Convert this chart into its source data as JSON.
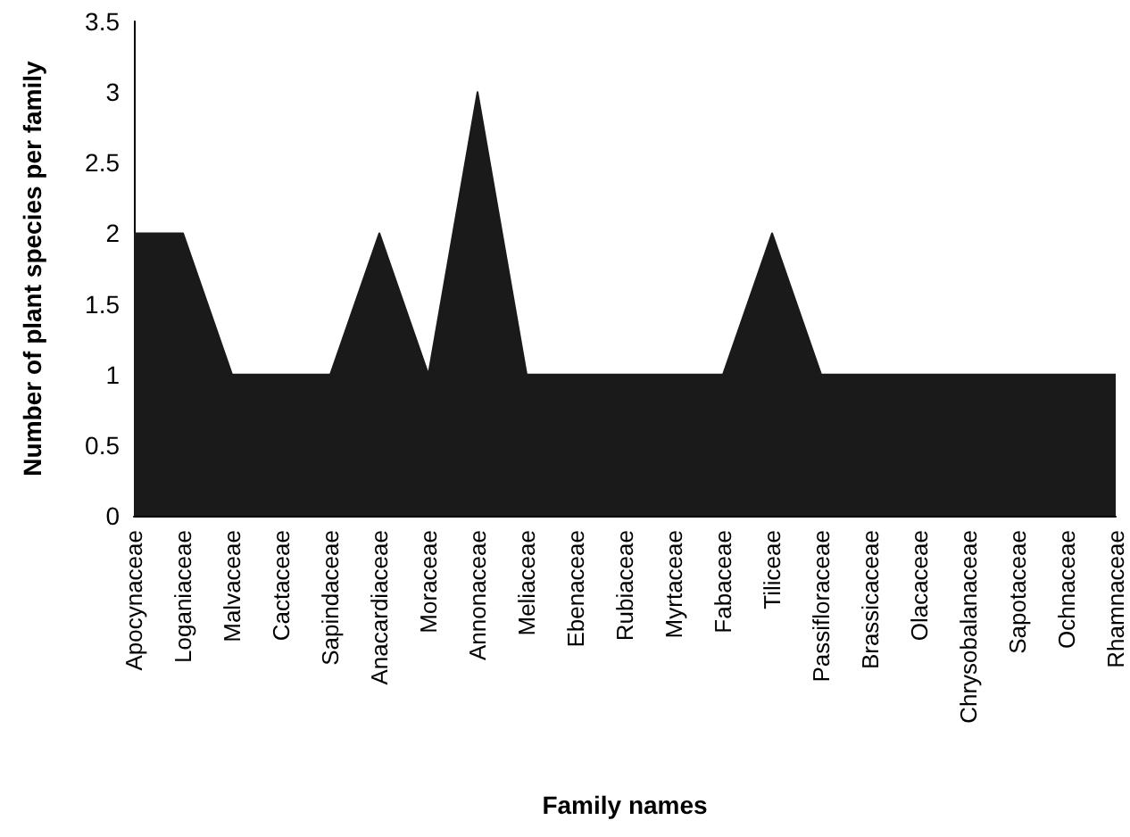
{
  "chart_data": {
    "type": "area",
    "xlabel": "Family names",
    "ylabel": "Number of plant species per family",
    "categories": [
      "Apocynaceae",
      "Loganiaceae",
      "Malvaceae",
      "Cactaceae",
      "Sapindaceae",
      "Anacardiaceae",
      "Moraceae",
      "Annonaceae",
      "Meliaceae",
      "Ebenaceae",
      "Rubiaceae",
      "Myrtaceae",
      "Fabaceae",
      "Tiliceae",
      "Passifloraceae",
      "Brassicaceae",
      "Olacaceae",
      "Chrysobalanaceae",
      "Sapotaceae",
      "Ochnaceae",
      "Rhamnaceae"
    ],
    "values": [
      2,
      2,
      1,
      1,
      1,
      2,
      1,
      3,
      1,
      1,
      1,
      1,
      1,
      2,
      1,
      1,
      1,
      1,
      1,
      1,
      1
    ],
    "color": "#1a1a1a",
    "ylim": [
      0,
      3.5
    ],
    "yticks": [
      0,
      0.5,
      1,
      1.5,
      2,
      2.5,
      3,
      3.5
    ],
    "grid": false
  }
}
